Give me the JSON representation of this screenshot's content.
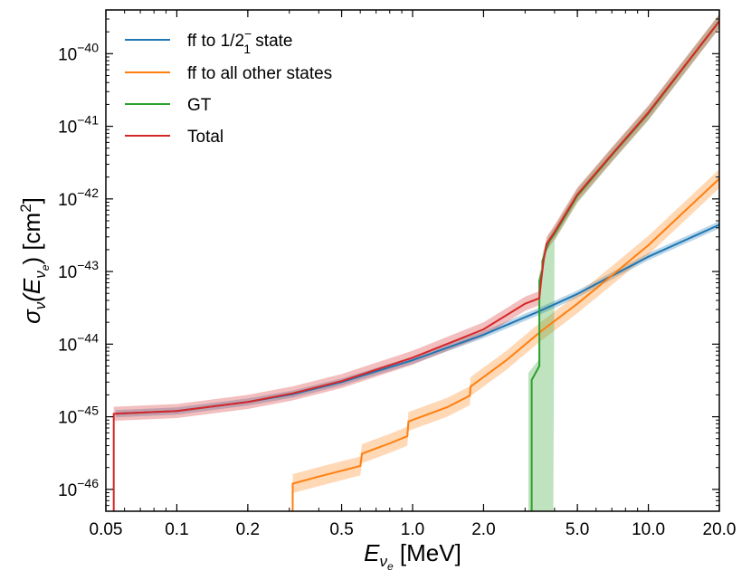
{
  "chart_data": {
    "type": "line",
    "title": "",
    "xlabel": {
      "main": "E",
      "sub": "ν",
      "subsub": "e",
      "unit": " [MeV]"
    },
    "ylabel": {
      "main": "σ",
      "sub": "ν",
      "paren": "(E",
      "psub": "ν",
      "psubsub": "e",
      "close": ") [cm",
      "sup": "2",
      "end": "]"
    },
    "x_scale": "log",
    "y_scale": "log",
    "xlim": [
      0.05,
      20.0
    ],
    "ylim": [
      5e-47,
      4e-40
    ],
    "grid": false,
    "legend_position": "top-left",
    "x_ticks": [
      {
        "value": 0.05,
        "label": "0.05"
      },
      {
        "value": 0.1,
        "label": "0.1"
      },
      {
        "value": 0.2,
        "label": "0.2"
      },
      {
        "value": 0.5,
        "label": "0.5"
      },
      {
        "value": 1.0,
        "label": "1.0"
      },
      {
        "value": 2.0,
        "label": "2.0"
      },
      {
        "value": 5.0,
        "label": "5.0"
      },
      {
        "value": 10.0,
        "label": "10.0"
      },
      {
        "value": 20.0,
        "label": "20.0"
      }
    ],
    "y_ticks": [
      {
        "value": 1e-46,
        "base": "10",
        "exp": "−46"
      },
      {
        "value": 1e-45,
        "base": "10",
        "exp": "−45"
      },
      {
        "value": 1e-44,
        "base": "10",
        "exp": "−44"
      },
      {
        "value": 1e-43,
        "base": "10",
        "exp": "−43"
      },
      {
        "value": 1e-42,
        "base": "10",
        "exp": "−42"
      },
      {
        "value": 1e-41,
        "base": "10",
        "exp": "−41"
      },
      {
        "value": 1e-40,
        "base": "10",
        "exp": "−40"
      }
    ],
    "series": [
      {
        "name": "ff to 1/2",
        "legend_sup": "−",
        "legend_sub": "1",
        "legend_suffix": " state",
        "color": "#1f77b4",
        "band_factor": 1.12,
        "x": [
          0.055,
          0.1,
          0.2,
          0.31,
          0.5,
          1.0,
          2.0,
          3.5,
          5.0,
          10.0,
          20.0
        ],
        "y": [
          1.1e-45,
          1.2e-45,
          1.6e-45,
          2.05e-45,
          3e-45,
          6e-45,
          1.35e-44,
          2.9e-44,
          4.9e-44,
          1.6e-43,
          4.4e-43
        ]
      },
      {
        "name": "ff to all other states",
        "color": "#ff7f0e",
        "band_factor": 1.35,
        "x": [
          0.31,
          0.31,
          0.4,
          0.6,
          0.61,
          0.8,
          0.95,
          0.96,
          1.4,
          1.75,
          1.76,
          2.5,
          3.5,
          5.0,
          7.0,
          10.0,
          20.0
        ],
        "y": [
          5e-47,
          1.2e-46,
          1.5e-46,
          2.1e-46,
          3.1e-46,
          4.3e-46,
          5.4e-46,
          8.6e-46,
          1.35e-45,
          1.95e-45,
          2.6e-45,
          6e-45,
          1.5e-44,
          3.6e-44,
          8.8e-44,
          2.3e-43,
          1.9e-42
        ]
      },
      {
        "name": "GT",
        "color": "#2ca02c",
        "band_factor": 1.25,
        "band_special": {
          "x0": 3.1,
          "x1": 3.95
        },
        "x": [
          3.2,
          3.2,
          3.45,
          3.45,
          3.55,
          3.55,
          3.7,
          3.8,
          4.0,
          5.0,
          7.0,
          10.0,
          20.0
        ],
        "y": [
          5e-47,
          3.2e-45,
          5e-45,
          7.5e-44,
          1.05e-43,
          1.4e-43,
          2.1e-43,
          2.6e-43,
          3.3e-43,
          1.1e-42,
          4e-42,
          1.5e-41,
          2.8e-40
        ]
      },
      {
        "name": "Total",
        "color": "#d62728",
        "band_factor": 1.25,
        "x": [
          0.054,
          0.054,
          0.1,
          0.2,
          0.31,
          0.5,
          1.0,
          2.0,
          3.0,
          3.45,
          3.5,
          3.6,
          3.7,
          4.0,
          5.0,
          7.0,
          10.0,
          20.0
        ],
        "y": [
          5e-47,
          1.1e-45,
          1.2e-45,
          1.6e-45,
          2.1e-45,
          3.1e-45,
          6.5e-45,
          1.6e-44,
          3.6e-44,
          4.3e-44,
          7e-44,
          1.5e-43,
          2.4e-43,
          3.5e-43,
          1.15e-42,
          4.1e-42,
          1.55e-41,
          2.8e-40
        ]
      }
    ]
  }
}
